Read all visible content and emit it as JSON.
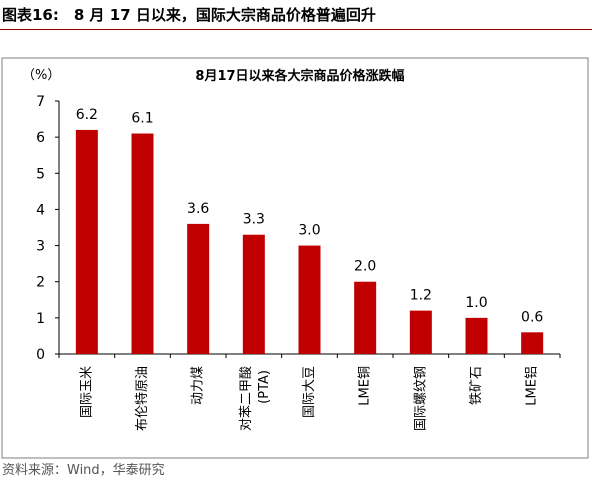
{
  "figure_title": "图表16:　8 月 17 日以来，国际大宗商品价格普遍回升",
  "source": "资料来源：Wind，华泰研究",
  "colors": {
    "bar": "#C00000",
    "rule": "#A00000"
  },
  "chart_data": {
    "type": "bar",
    "title": "8月17日以来各大宗商品价格涨跌幅",
    "ylabel": "（%）",
    "xlabel": "",
    "ylim": [
      0,
      7
    ],
    "yticks": [
      0,
      1,
      2,
      3,
      4,
      5,
      6,
      7
    ],
    "grid": false,
    "legend": "none",
    "categories": [
      "国际玉米",
      "布伦特原油",
      "动力煤",
      "对苯二甲酸(PTA)",
      "国际大豆",
      "LME铜",
      "国际螺纹钢",
      "铁矿石",
      "LME铝"
    ],
    "values": [
      6.2,
      6.1,
      3.6,
      3.3,
      3.0,
      2.0,
      1.2,
      1.0,
      0.6
    ],
    "value_labels": [
      "6.2",
      "6.1",
      "3.6",
      "3.3",
      "3.0",
      "2.0",
      "1.2",
      "1.0",
      "0.6"
    ]
  }
}
